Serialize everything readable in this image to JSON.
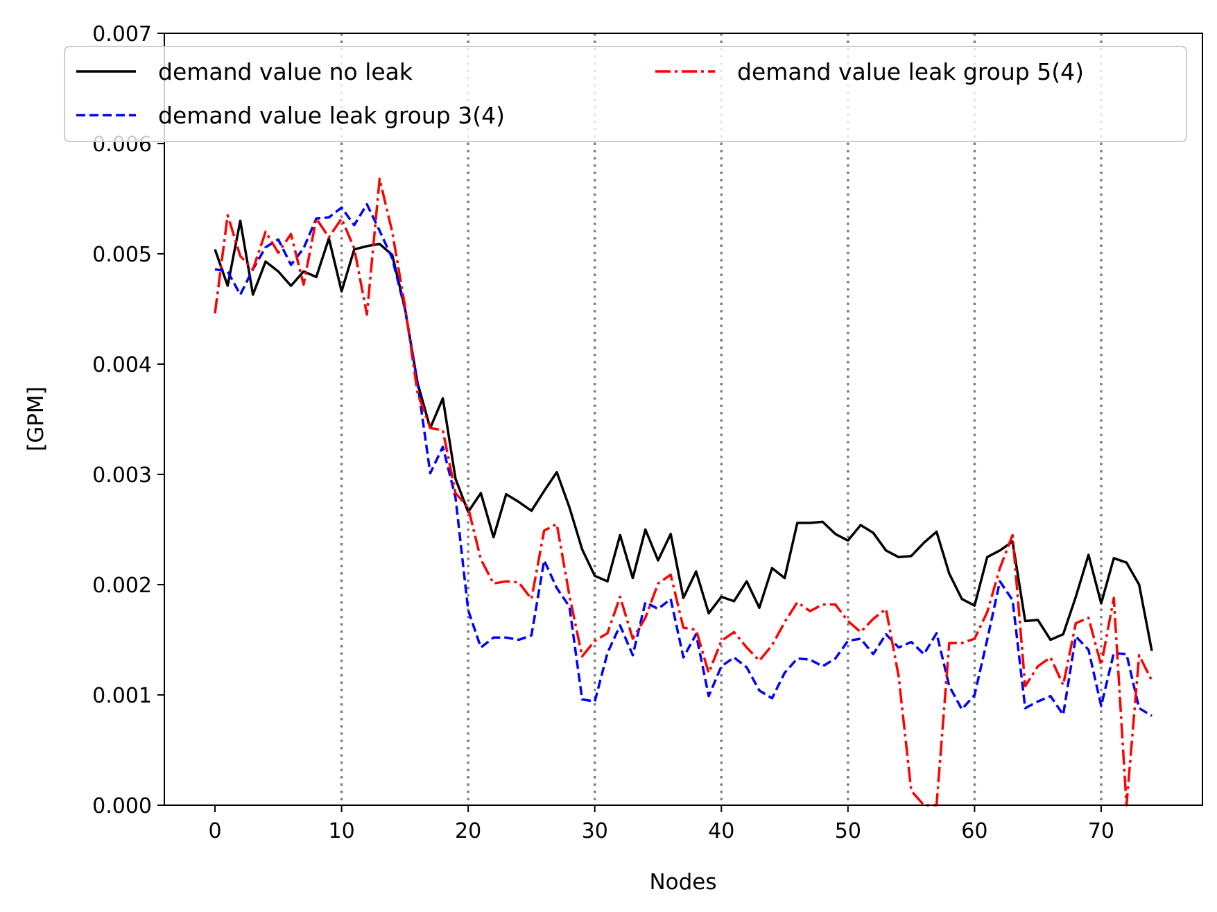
{
  "chart_data": {
    "type": "line",
    "title": "",
    "xlabel": "Nodes",
    "ylabel": "[GPM]",
    "xlim": [
      -4,
      78
    ],
    "ylim": [
      0,
      0.007
    ],
    "xticks": [
      0,
      10,
      20,
      30,
      40,
      50,
      60,
      70
    ],
    "xtick_labels": [
      "0",
      "10",
      "20",
      "30",
      "40",
      "50",
      "60",
      "70"
    ],
    "yticks": [
      0,
      0.001,
      0.002,
      0.003,
      0.004,
      0.005,
      0.006,
      0.007
    ],
    "ytick_labels": [
      "0.000",
      "0.001",
      "0.002",
      "0.003",
      "0.004",
      "0.005",
      "0.006",
      "0.007"
    ],
    "vertical_gridlines": [
      10,
      20,
      30,
      40,
      50,
      60,
      70
    ],
    "grid": "vertical dotted gray at x = 10, 20, 30, 40, 50, 60, 70",
    "legend_placement": "top",
    "x": [
      0,
      1,
      2,
      3,
      4,
      5,
      6,
      7,
      8,
      9,
      10,
      11,
      12,
      13,
      14,
      15,
      16,
      17,
      18,
      19,
      20,
      21,
      22,
      23,
      24,
      25,
      26,
      27,
      28,
      29,
      30,
      31,
      32,
      33,
      34,
      35,
      36,
      37,
      38,
      39,
      40,
      41,
      42,
      43,
      44,
      45,
      46,
      47,
      48,
      49,
      50,
      51,
      52,
      53,
      54,
      55,
      56,
      57,
      58,
      59,
      60,
      61,
      62,
      63,
      64,
      65,
      66,
      67,
      68,
      69,
      70,
      71,
      72,
      73,
      74
    ],
    "series": [
      {
        "name": "demand value no leak",
        "color": "#000000",
        "style": "solid",
        "values": [
          0.00504,
          0.00471,
          0.0053,
          0.00463,
          0.00493,
          0.00484,
          0.00471,
          0.00484,
          0.00479,
          0.00514,
          0.00466,
          0.00504,
          0.00507,
          0.00509,
          0.00499,
          0.00451,
          0.00383,
          0.00342,
          0.00369,
          0.00296,
          0.00266,
          0.00283,
          0.00243,
          0.00282,
          0.00275,
          0.00267,
          0.00285,
          0.00302,
          0.0027,
          0.00232,
          0.00208,
          0.00203,
          0.00245,
          0.00206,
          0.0025,
          0.00222,
          0.00246,
          0.00188,
          0.00212,
          0.00174,
          0.00189,
          0.00185,
          0.00203,
          0.00179,
          0.00215,
          0.00206,
          0.00256,
          0.00256,
          0.00257,
          0.00246,
          0.0024,
          0.00254,
          0.00247,
          0.00231,
          0.00225,
          0.00226,
          0.00238,
          0.00248,
          0.0021,
          0.00187,
          0.00181,
          0.00225,
          0.00231,
          0.00239,
          0.00167,
          0.00168,
          0.0015,
          0.00155,
          0.00189,
          0.00227,
          0.00183,
          0.00224,
          0.0022,
          0.002,
          0.0014
        ]
      },
      {
        "name": "demand value leak group 3(4)",
        "color": "#0000ff",
        "style": "dashed",
        "values": [
          0.00486,
          0.00484,
          0.00463,
          0.00486,
          0.00506,
          0.00513,
          0.0049,
          0.00505,
          0.00532,
          0.00533,
          0.00542,
          0.00526,
          0.00545,
          0.00521,
          0.00496,
          0.0045,
          0.00383,
          0.00301,
          0.00325,
          0.00279,
          0.00177,
          0.00143,
          0.00152,
          0.00152,
          0.0015,
          0.00154,
          0.00222,
          0.00197,
          0.0018,
          0.00096,
          0.00094,
          0.00138,
          0.00163,
          0.00136,
          0.00184,
          0.00178,
          0.00187,
          0.00134,
          0.00155,
          0.00099,
          0.00126,
          0.00134,
          0.00125,
          0.00104,
          0.00097,
          0.0012,
          0.00133,
          0.00132,
          0.00126,
          0.00133,
          0.00149,
          0.00151,
          0.00137,
          0.00155,
          0.00143,
          0.00148,
          0.00137,
          0.00156,
          0.00108,
          0.00087,
          0.001,
          0.0015,
          0.00203,
          0.00186,
          0.00088,
          0.00094,
          0.00099,
          0.00082,
          0.00153,
          0.00141,
          0.0009,
          0.00138,
          0.00137,
          0.00088,
          0.00081
        ]
      },
      {
        "name": "demand value leak group 5(4)",
        "color": "#ff0000",
        "style": "dashdot",
        "values": [
          0.00446,
          0.00535,
          0.00498,
          0.00486,
          0.0052,
          0.00501,
          0.00518,
          0.00472,
          0.00532,
          0.00515,
          0.00532,
          0.00505,
          0.00445,
          0.00568,
          0.0052,
          0.00453,
          0.00374,
          0.00342,
          0.0034,
          0.00283,
          0.0027,
          0.00223,
          0.00201,
          0.00203,
          0.00202,
          0.00187,
          0.00249,
          0.00255,
          0.0019,
          0.00135,
          0.00149,
          0.00156,
          0.00189,
          0.00151,
          0.0017,
          0.00201,
          0.00209,
          0.00161,
          0.00159,
          0.0012,
          0.00149,
          0.00157,
          0.00143,
          0.00131,
          0.00145,
          0.00166,
          0.00184,
          0.00176,
          0.00182,
          0.00182,
          0.00167,
          0.00157,
          0.00169,
          0.00178,
          0.00117,
          0.00013,
          0.0,
          0.0,
          0.00147,
          0.00147,
          0.00151,
          0.00175,
          0.00215,
          0.00245,
          0.00108,
          0.00126,
          0.00134,
          0.00109,
          0.00165,
          0.0017,
          0.00127,
          0.00188,
          0.0,
          0.00136,
          0.00113
        ]
      }
    ]
  }
}
